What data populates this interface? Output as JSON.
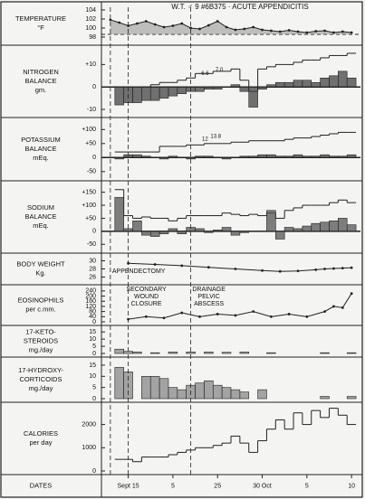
{
  "chart_data": [
    {
      "type": "line",
      "label": [
        "TEMPERATURE",
        "°F"
      ],
      "title": "W.T. ♂ 9 #6B375 · ACUTE APPENDICITIS",
      "xlim": [
        -3,
        26
      ],
      "ylim": [
        97,
        105
      ],
      "yticks": [
        98,
        100,
        102,
        104
      ],
      "reference": 98.6,
      "area": true,
      "x": [
        -2,
        -1,
        0,
        1,
        2,
        3,
        4,
        5,
        6,
        7,
        8,
        9,
        10,
        11,
        12,
        13,
        14,
        15,
        16,
        17,
        18,
        19,
        20,
        21,
        22,
        23,
        24,
        25
      ],
      "series": [
        {
          "color": "#222",
          "values": [
            101.8,
            101.2,
            100.5,
            101,
            101.5,
            100.8,
            100.2,
            100.5,
            101,
            100,
            99.8,
            100.6,
            101.5,
            100.2,
            99.6,
            99.8,
            100.2,
            99.6,
            99.4,
            99.2,
            99.5,
            99.2,
            99,
            99.3,
            99.4,
            99,
            99.2,
            99
          ]
        }
      ]
    },
    {
      "type": "balance",
      "label": [
        "NITROGEN",
        "BALANCE",
        "gm."
      ],
      "xlim": [
        -3,
        26
      ],
      "ylim": [
        -12,
        17
      ],
      "yticks": [
        -10,
        0,
        {
          "value": 10,
          "label": "+10"
        }
      ],
      "x": [
        -1,
        0,
        1,
        2,
        3,
        4,
        5,
        6,
        7,
        8,
        9,
        10,
        11,
        12,
        13,
        14,
        15,
        16,
        17,
        18,
        19,
        20,
        21,
        22,
        23,
        24,
        25
      ],
      "series": [
        {
          "style": "step",
          "color": "#222",
          "values": [
            0,
            0,
            0,
            0,
            1,
            2,
            2,
            3,
            4,
            6,
            6,
            7,
            7,
            8,
            3,
            -2,
            8,
            9,
            10,
            10,
            11,
            12,
            12,
            13,
            14,
            14,
            15
          ]
        },
        {
          "style": "bar",
          "color": "#444",
          "values": [
            -8,
            -7,
            -7,
            -6,
            -6,
            -5,
            -4,
            -3,
            -2,
            -2,
            -1,
            -1,
            0,
            1,
            -2,
            -9,
            -1,
            1,
            2,
            2,
            3,
            3,
            2,
            4,
            5,
            7,
            4
          ]
        }
      ],
      "annotations": [
        {
          "x": 8.6,
          "y": 6,
          "text": "6.6"
        },
        {
          "x": 10.2,
          "y": 7.5,
          "text": "7.0"
        }
      ]
    },
    {
      "type": "balance",
      "label": [
        "POTASSIUM",
        "BALANCE",
        "mEq."
      ],
      "xlim": [
        -3,
        26
      ],
      "ylim": [
        -70,
        130
      ],
      "yticks": [
        -50,
        0,
        {
          "value": 50,
          "label": "+50"
        },
        {
          "value": 100,
          "label": "+100"
        }
      ],
      "x": [
        -1,
        0,
        1,
        2,
        3,
        4,
        5,
        6,
        7,
        8,
        9,
        10,
        11,
        12,
        13,
        14,
        15,
        16,
        17,
        18,
        19,
        20,
        21,
        22,
        23,
        24,
        25
      ],
      "series": [
        {
          "style": "step",
          "color": "#222",
          "values": [
            20,
            20,
            20,
            20,
            20,
            40,
            40,
            40,
            45,
            45,
            50,
            50,
            50,
            55,
            55,
            60,
            60,
            60,
            60,
            65,
            70,
            70,
            75,
            80,
            85,
            90,
            90
          ]
        },
        {
          "style": "bar",
          "color": "#444",
          "values": [
            -5,
            10,
            10,
            5,
            0,
            -5,
            5,
            0,
            -5,
            5,
            5,
            0,
            -5,
            0,
            5,
            5,
            10,
            10,
            5,
            5,
            10,
            5,
            5,
            10,
            5,
            5,
            10
          ]
        }
      ],
      "annotations": [
        {
          "x": 8.6,
          "y": 65,
          "text": "12"
        },
        {
          "x": 9.8,
          "y": 75,
          "text": "13.8"
        }
      ]
    },
    {
      "type": "balance",
      "label": [
        "SODIUM",
        "BALANCE",
        "mEq."
      ],
      "xlim": [
        -3,
        26
      ],
      "ylim": [
        -70,
        180
      ],
      "yticks": [
        -50,
        0,
        {
          "value": 50,
          "label": "+50"
        },
        {
          "value": 100,
          "label": "+100"
        },
        {
          "value": 150,
          "label": "+150"
        }
      ],
      "x": [
        -1,
        0,
        1,
        2,
        3,
        4,
        5,
        6,
        7,
        8,
        9,
        10,
        11,
        12,
        13,
        14,
        15,
        16,
        17,
        18,
        19,
        20,
        21,
        22,
        23,
        24,
        25
      ],
      "series": [
        {
          "style": "step",
          "color": "#222",
          "values": [
            160,
            60,
            50,
            55,
            50,
            50,
            40,
            50,
            60,
            60,
            60,
            60,
            70,
            65,
            60,
            65,
            60,
            70,
            50,
            80,
            90,
            100,
            100,
            100,
            110,
            120,
            110
          ]
        },
        {
          "style": "bar",
          "color": "#555",
          "values": [
            130,
            10,
            40,
            -15,
            -20,
            -10,
            10,
            -10,
            15,
            10,
            -5,
            5,
            15,
            -15,
            -5,
            0,
            0,
            80,
            -30,
            15,
            10,
            20,
            30,
            35,
            40,
            50,
            25
          ]
        }
      ]
    },
    {
      "type": "line",
      "label": [
        "BODY WEIGHT",
        "Kg."
      ],
      "xlim": [
        -3,
        26
      ],
      "ylim": [
        25,
        31
      ],
      "yticks": [
        26,
        28,
        30
      ],
      "x": [
        0,
        3,
        6,
        9,
        12,
        15,
        17,
        19,
        21,
        22,
        23,
        24,
        25
      ],
      "series": [
        {
          "color": "#222",
          "values": [
            29.4,
            29.1,
            28.8,
            28.4,
            28,
            27.6,
            27.4,
            27.5,
            27.8,
            28,
            28.1,
            28.2,
            28.3
          ]
        }
      ]
    },
    {
      "type": "line",
      "label": [
        "EOSINOPHILS",
        "per c.mm."
      ],
      "xlim": [
        -3,
        26
      ],
      "ylim": [
        0,
        260
      ],
      "yticks": [
        0,
        40,
        80,
        120,
        160,
        200,
        240
      ],
      "x": [
        0,
        2,
        4,
        6,
        8,
        10,
        12,
        14,
        16,
        18,
        20,
        22,
        23,
        24,
        25
      ],
      "series": [
        {
          "color": "#222",
          "values": [
            20,
            40,
            30,
            70,
            40,
            60,
            50,
            80,
            40,
            60,
            40,
            80,
            120,
            110,
            220
          ]
        }
      ]
    },
    {
      "type": "bar",
      "label": [
        "17-KETO-",
        "STEROIDS",
        "mg./day"
      ],
      "xlim": [
        -3,
        26
      ],
      "ylim": [
        0,
        17
      ],
      "yticks": [
        0,
        5,
        10,
        15
      ],
      "x": [
        -1,
        0,
        1,
        3,
        5,
        7,
        9,
        11,
        13,
        16,
        22,
        25
      ],
      "series": [
        {
          "color": "#888",
          "values": [
            3,
            1.5,
            1,
            0.5,
            1,
            1,
            1,
            0.8,
            1,
            0.5,
            0.5,
            0.5
          ]
        }
      ]
    },
    {
      "type": "bar",
      "label": [
        "17-HYDROXY-",
        "CORTICOIDS",
        "mg./day"
      ],
      "xlim": [
        -3,
        26
      ],
      "ylim": [
        0,
        17
      ],
      "yticks": [
        0,
        5,
        10,
        15
      ],
      "x": [
        -1,
        0,
        2,
        3,
        4,
        5,
        6,
        7,
        8,
        9,
        10,
        11,
        12,
        13,
        15,
        22,
        25
      ],
      "series": [
        {
          "color": "#888",
          "values": [
            14,
            12,
            10,
            10,
            9,
            5,
            4,
            6,
            7,
            8,
            6,
            5,
            4,
            3,
            4,
            1,
            1
          ]
        }
      ]
    },
    {
      "type": "step",
      "label": [
        "CALORIES",
        "per day"
      ],
      "xlim": [
        -3,
        26
      ],
      "ylim": [
        0,
        2800
      ],
      "yticks": [
        0,
        1000,
        2000
      ],
      "x": [
        -1,
        0,
        1,
        2,
        3,
        4,
        5,
        6,
        7,
        8,
        9,
        10,
        11,
        12,
        13,
        14,
        15,
        16,
        17,
        18,
        19,
        20,
        21,
        22,
        23,
        24,
        25
      ],
      "series": [
        {
          "color": "#222",
          "values": [
            500,
            500,
            400,
            600,
            600,
            600,
            700,
            800,
            900,
            1000,
            1000,
            1100,
            1200,
            1500,
            1200,
            800,
            1300,
            1800,
            2200,
            1800,
            2500,
            2000,
            2600,
            2300,
            2700,
            2400,
            2000
          ]
        }
      ]
    },
    {
      "type": "axis",
      "label": [
        "DATES"
      ],
      "xlim": [
        -3,
        26
      ],
      "xticks": [
        {
          "value": 0,
          "label": "Sept 15"
        },
        5,
        {
          "value": 10,
          "label": "25"
        },
        {
          "value": 15,
          "label": "30 Oct"
        },
        {
          "value": 20,
          "label": "5"
        },
        {
          "value": 25,
          "label": "10"
        }
      ]
    }
  ],
  "events": [
    {
      "x": -2,
      "label": [
        "APPENDECTOMY"
      ]
    },
    {
      "x": 0,
      "label": [
        "SECONDARY",
        "WOUND",
        "CLOSURE"
      ]
    },
    {
      "x": 7,
      "label": [
        "DRAINAGE",
        "PELVIC",
        "ABSCESS"
      ]
    }
  ]
}
